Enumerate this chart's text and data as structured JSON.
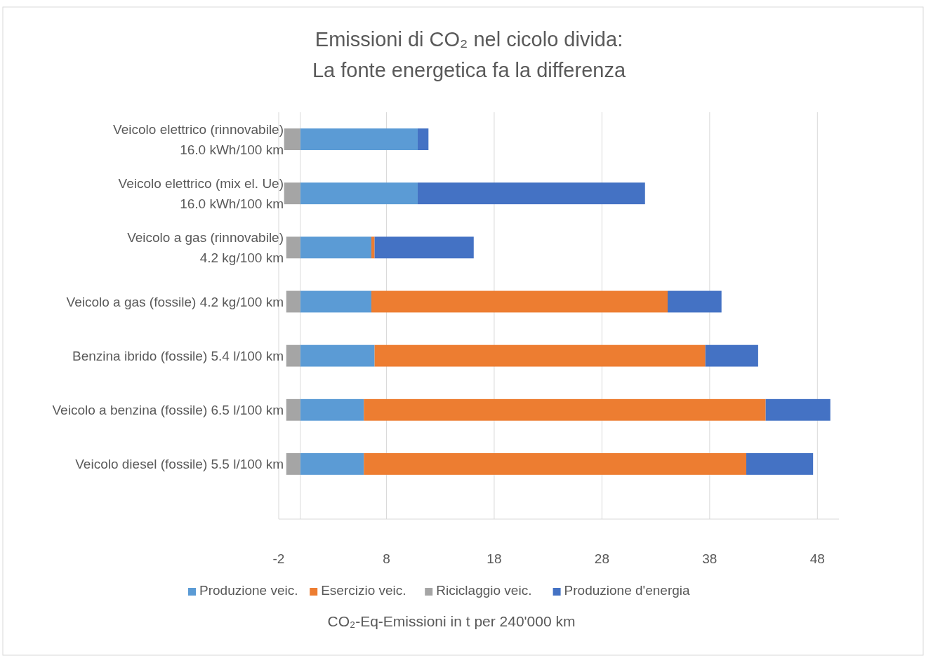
{
  "chart_data": {
    "type": "bar",
    "orientation": "horizontal",
    "stacked": true,
    "title": "Emissioni di CO₂ nel cicolo divida:\nLa fonte energetica fa la differenza",
    "xlabel": "CO₂-Eq-Emissioni in t per 240'000 km",
    "categories": [
      "Veicolo elettrico (rinnovabile)\n16.0 kWh/100 km",
      "Veicolo elettrico (mix el. Ue)\n16.0 kWh/100 km",
      "Veicolo a gas (rinnovabile)\n4.2 kg/100 km",
      "Veicolo a gas (fossile) 4.2 kg/100 km",
      "Benzina ibrido  (fossile) 5.4 l/100 km",
      "Veicolo a benzina (fossile) 6.5 l/100 km",
      "Veicolo diesel (fossile) 5.5 l/100 km"
    ],
    "series": [
      {
        "name": "Produzione veic.",
        "color": "#5b9bd5",
        "values": [
          10.9,
          10.9,
          6.6,
          6.6,
          6.9,
          5.9,
          5.9
        ]
      },
      {
        "name": "Esercizio veic.",
        "color": "#ed7d31",
        "values": [
          null,
          null,
          0.3,
          27.5,
          30.7,
          37.3,
          35.5
        ]
      },
      {
        "name": "Riciclaggio veic.",
        "color": "#a5a5a5",
        "values": [
          -1.5,
          -1.5,
          -1.3,
          -1.3,
          -1.3,
          -1.3,
          -1.3
        ]
      },
      {
        "name": "Produzione d'energia",
        "color": "#4472c4",
        "values": [
          1.0,
          21.1,
          9.2,
          5.0,
          4.9,
          6.0,
          6.2
        ]
      }
    ],
    "xlim": [
      -2,
      50
    ],
    "xticks": [
      -2,
      8,
      18,
      28,
      38,
      48
    ],
    "grid": "x",
    "legend": "bottom"
  }
}
